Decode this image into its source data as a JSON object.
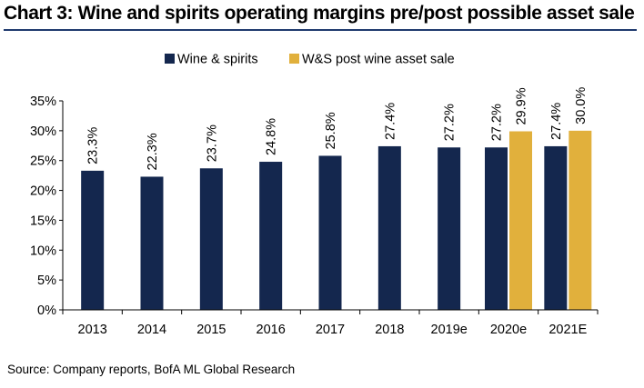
{
  "title": "Chart 3: Wine and spirits operating margins pre/post possible asset sale",
  "source": "Source:  Company reports, BofA ML Global Research",
  "colors": {
    "series1": "#14274e",
    "series2": "#e1b03c",
    "title_rule": "#1f3a6e",
    "axis": "#000000"
  },
  "chart_data": {
    "type": "bar",
    "title": "Wine and spirits operating margins pre/post possible asset sale",
    "categories": [
      "2013",
      "2014",
      "2015",
      "2016",
      "2017",
      "2018",
      "2019e",
      "2020e",
      "2021E"
    ],
    "series": [
      {
        "name": "Wine & spirits",
        "values": [
          23.3,
          22.3,
          23.7,
          24.8,
          25.8,
          27.4,
          27.2,
          27.2,
          27.4
        ],
        "labels": [
          "23.3%",
          "22.3%",
          "23.7%",
          "24.8%",
          "25.8%",
          "27.4%",
          "27.2%",
          "27.2%",
          "27.4%"
        ]
      },
      {
        "name": "W&S post wine asset sale",
        "values": [
          null,
          null,
          null,
          null,
          null,
          null,
          null,
          29.9,
          30.0
        ],
        "labels": [
          null,
          null,
          null,
          null,
          null,
          null,
          null,
          "29.9%",
          "30.0%"
        ]
      }
    ],
    "ylim": [
      0,
      35
    ],
    "yticks": [
      "0%",
      "5%",
      "10%",
      "15%",
      "20%",
      "25%",
      "30%",
      "35%"
    ],
    "xlabel": "",
    "ylabel": "",
    "legend_position": "top",
    "grid": false
  }
}
